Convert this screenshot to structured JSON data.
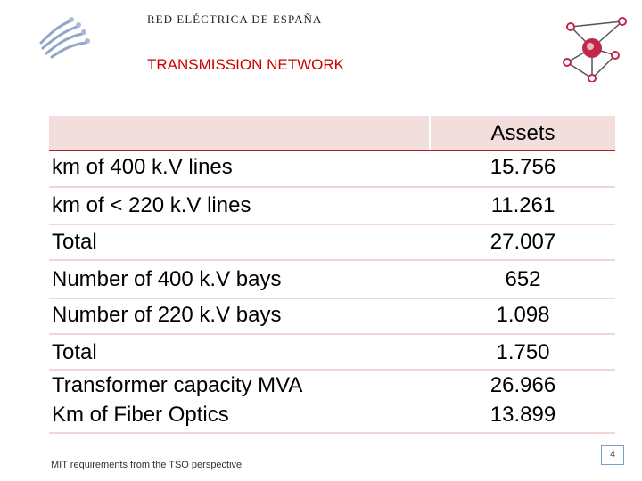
{
  "header": {
    "company": "RED ELÉCTRICA DE ESPAÑA",
    "title": "TRANSMISSION NETWORK"
  },
  "table": {
    "column_header": "Assets",
    "rows": [
      {
        "label": "km of 400 k.V lines",
        "value": "15.756"
      },
      {
        "label": "km of < 220 k.V lines",
        "value": "11.261"
      },
      {
        "label": "Total",
        "value": "27.007"
      },
      {
        "label": "Number of 400 k.V bays",
        "value": "652"
      },
      {
        "label": "Number of 220 k.V bays",
        "value": "1.098"
      },
      {
        "label": "Total",
        "value": "1.750"
      },
      {
        "label": "Transformer capacity MVA",
        "value": "26.966"
      },
      {
        "label": "Km of Fiber Optics",
        "value": "13.899"
      }
    ]
  },
  "footer": {
    "text": "MIT requirements from the TSO perspective",
    "page_number": "4"
  },
  "colors": {
    "accent_red": "#cc0000",
    "header_fill": "#f3dede",
    "separator": "#f2d6d6"
  }
}
